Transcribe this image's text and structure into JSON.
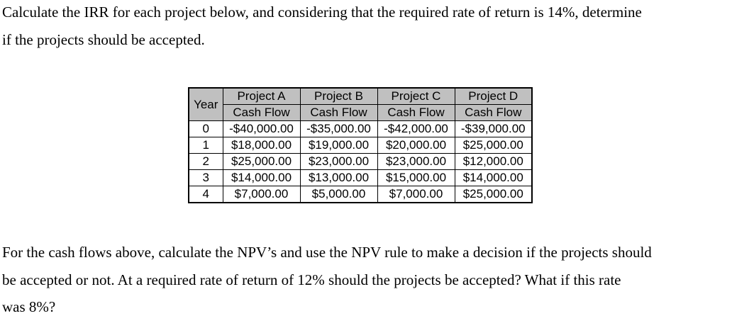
{
  "intro": {
    "lines": [
      "Calculate the IRR for each project below, and considering that the required rate of return is 14%, determine",
      "if the projects should be accepted."
    ]
  },
  "cashflow_table": {
    "corner_header": "Year",
    "columns": [
      {
        "title": "Project A",
        "subtitle": "Cash Flow"
      },
      {
        "title": "Project B",
        "subtitle": "Cash Flow"
      },
      {
        "title": "Project C",
        "subtitle": "Cash Flow"
      },
      {
        "title": "Project D",
        "subtitle": "Cash Flow"
      }
    ],
    "rows": [
      {
        "year": "0",
        "values": [
          "-$40,000.00",
          "-$35,000.00",
          "-$42,000.00",
          "-$39,000.00"
        ]
      },
      {
        "year": "1",
        "values": [
          "$18,000.00",
          "$19,000.00",
          "$20,000.00",
          "$25,000.00"
        ]
      },
      {
        "year": "2",
        "values": [
          "$25,000.00",
          "$23,000.00",
          "$23,000.00",
          "$12,000.00"
        ]
      },
      {
        "year": "3",
        "values": [
          "$14,000.00",
          "$13,000.00",
          "$15,000.00",
          "$14,000.00"
        ]
      },
      {
        "year": "4",
        "values": [
          "$7,000.00",
          "$5,000.00",
          "$7,000.00",
          "$25,000.00"
        ]
      }
    ],
    "header_bg": "#c0c0c0",
    "border_color": "#000000",
    "text_color": "#000000"
  },
  "outro": {
    "lines": [
      "For the cash flows above, calculate the NPV’s and use the NPV rule to make a decision if the projects should",
      "be accepted or not. At a required rate of return of 12% should the projects be accepted? What if this rate",
      "was 8%?"
    ]
  }
}
